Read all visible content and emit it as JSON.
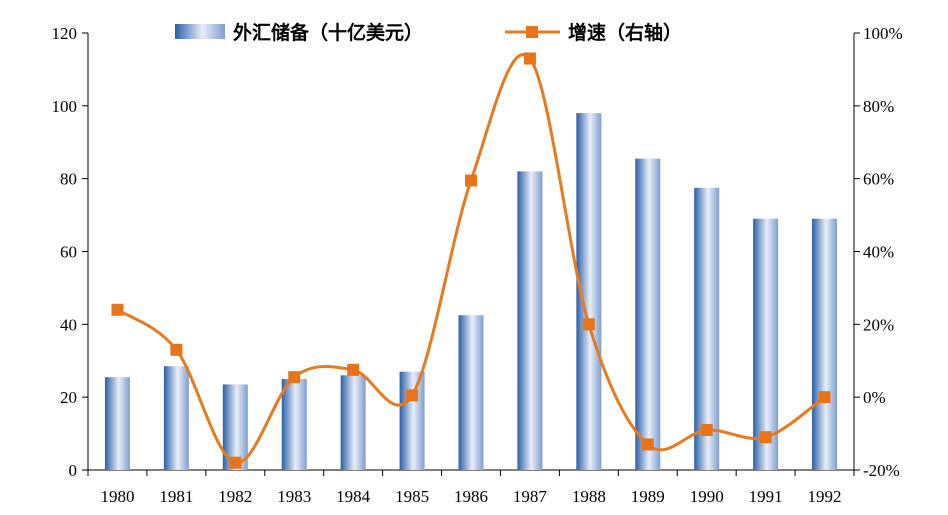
{
  "chart_data": {
    "type": "bar+line",
    "categories": [
      "1980",
      "1981",
      "1982",
      "1983",
      "1984",
      "1985",
      "1986",
      "1987",
      "1988",
      "1989",
      "1990",
      "1991",
      "1992"
    ],
    "series": [
      {
        "name": "外汇储备（十亿美元）",
        "type": "bar",
        "axis": "left",
        "values": [
          25.5,
          28.5,
          23.5,
          25,
          26,
          27,
          42.5,
          82,
          98,
          85.5,
          77.5,
          69,
          69
        ]
      },
      {
        "name": "增速（右轴）",
        "type": "line",
        "axis": "right",
        "values": [
          24,
          13,
          -18,
          5.5,
          7.5,
          0.5,
          59.5,
          93,
          20,
          -13,
          -9,
          -11,
          0
        ]
      }
    ],
    "y_left": {
      "min": 0,
      "max": 120,
      "ticks": [
        "0",
        "20",
        "40",
        "60",
        "80",
        "100",
        "120"
      ]
    },
    "y_right": {
      "min": -20,
      "max": 100,
      "ticks": [
        "-20%",
        "0%",
        "20%",
        "40%",
        "60%",
        "80%",
        "100%"
      ]
    },
    "legend_position": "top",
    "grid": false,
    "colors": {
      "bar_dark": "#2b5fa8",
      "bar_light": "#e8eef8",
      "line": "#e87a1e",
      "marker": "#e8741a"
    }
  }
}
